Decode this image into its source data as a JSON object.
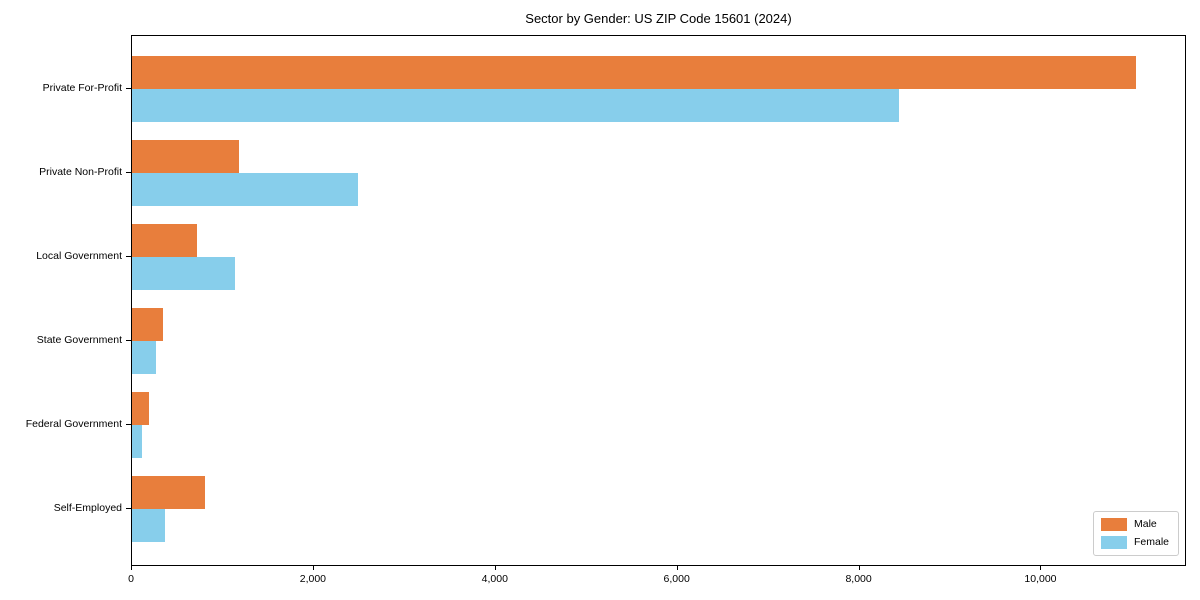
{
  "chart_data": {
    "type": "bar",
    "orientation": "horizontal",
    "title": "Sector by Gender: US ZIP Code 15601 (2024)",
    "categories": [
      "Private For-Profit",
      "Private Non-Profit",
      "Local Government",
      "State Government",
      "Federal Government",
      "Self-Employed"
    ],
    "series": [
      {
        "name": "Male",
        "color": "#e87e3c",
        "values": [
          11040,
          1180,
          710,
          340,
          185,
          805
        ]
      },
      {
        "name": "Female",
        "color": "#87ceeb",
        "values": [
          8430,
          2480,
          1130,
          260,
          115,
          365
        ]
      }
    ],
    "xlabel": "",
    "ylabel": "",
    "xlim": [
      0,
      11600
    ],
    "xticks": [
      0,
      2000,
      4000,
      6000,
      8000,
      10000
    ],
    "xtick_labels": [
      "0",
      "2,000",
      "4,000",
      "6,000",
      "8,000",
      "10,000"
    ],
    "legend": {
      "position": "lower right",
      "entries": [
        "Male",
        "Female"
      ]
    },
    "grid": false,
    "background": "#ffffff"
  }
}
